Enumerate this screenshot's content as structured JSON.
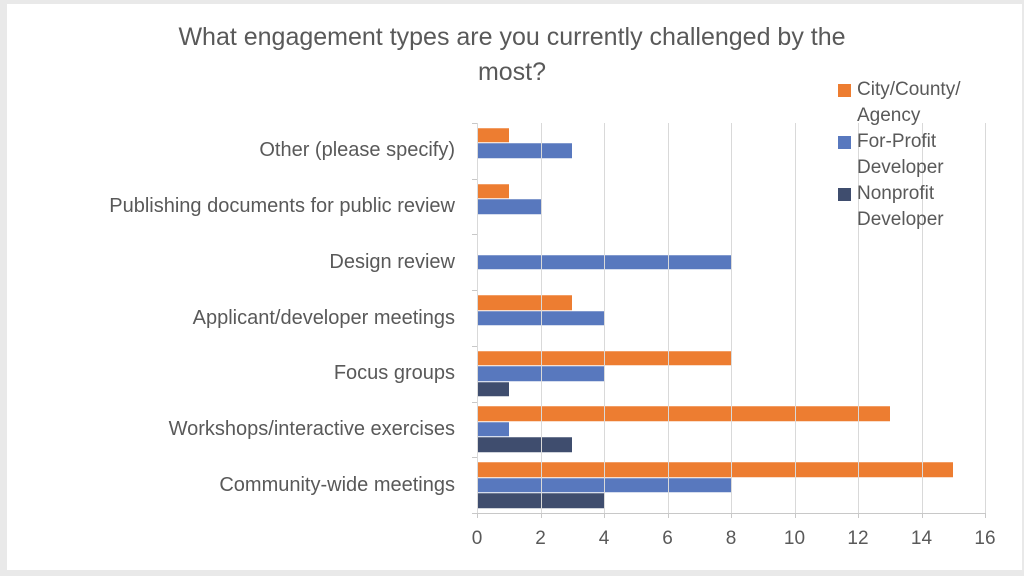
{
  "chart_data": {
    "type": "bar",
    "orientation": "horizontal",
    "title": "What engagement types are you currently challenged by the most?",
    "title_lines": [
      "What engagement types are you currently challenged by the",
      "most?"
    ],
    "categories": [
      "Other (please specify)",
      "Publishing documents for public review",
      "Design review",
      "Applicant/developer meetings",
      "Focus groups",
      "Workshops/interactive exercises",
      "Community-wide meetings"
    ],
    "series": [
      {
        "name": "City/County/Agency",
        "legend_lines": [
          "City/County/",
          "Agency"
        ],
        "color": "#ED7D31",
        "values": [
          1,
          1,
          0,
          3,
          8,
          13,
          15
        ]
      },
      {
        "name": "For-Profit Developer",
        "legend_lines": [
          "For-Profit",
          "Developer"
        ],
        "color": "#5878BE",
        "values": [
          3,
          2,
          8,
          4,
          4,
          1,
          8
        ]
      },
      {
        "name": "Nonprofit Developer",
        "legend_lines": [
          "Nonprofit",
          "Developer"
        ],
        "color": "#3F4D6E",
        "values": [
          0,
          0,
          0,
          0,
          1,
          3,
          4
        ]
      }
    ],
    "xlim": [
      0,
      16
    ],
    "x_ticks": [
      0,
      2,
      4,
      6,
      8,
      10,
      12,
      14,
      16
    ],
    "grid": true,
    "legend_position": "top-right",
    "colors": {
      "grid": "#D9D9D9",
      "axis": "#C8C8C8",
      "text": "#595959",
      "background": "#FFFFFF",
      "frame": "#E9E9E9"
    }
  }
}
